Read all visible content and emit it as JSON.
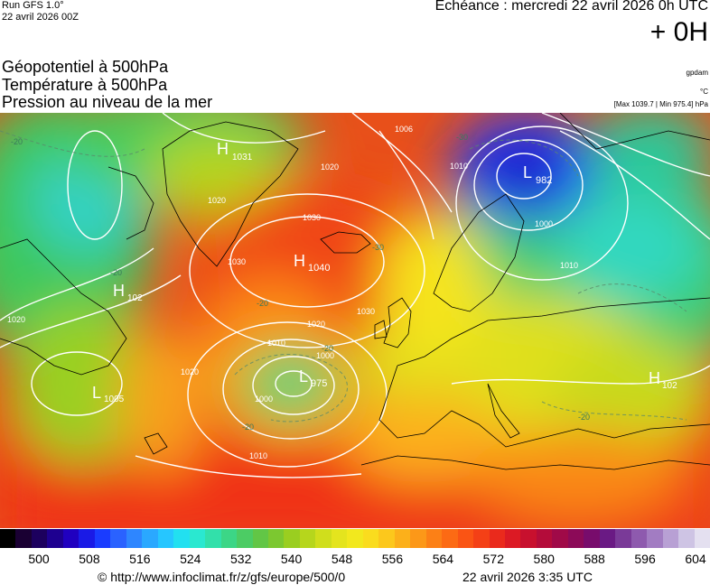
{
  "header": {
    "run": "Run GFS 1.0°",
    "run_date": "22 avril 2026 00Z",
    "echeance": "Echéance : mercredi 22 avril 2026 0h UTC",
    "lead": "+ 0H"
  },
  "titles": {
    "line1": "Géopotentiel à 500hPa",
    "line2": "Température à 500hPa",
    "line3": "Pression au niveau de la mer"
  },
  "units": {
    "geopotential": "gpdam",
    "temperature": "°C",
    "pressure_range": "[Max 1039.7 | Min 975.4] hPa"
  },
  "pressure_centers": [
    {
      "type": "H",
      "value": "1031"
    },
    {
      "type": "H",
      "value": "1040"
    },
    {
      "type": "H",
      "value": "102"
    },
    {
      "type": "L",
      "value": "982"
    },
    {
      "type": "L",
      "value": "975"
    },
    {
      "type": "L",
      "value": "1005"
    },
    {
      "type": "H",
      "value": "102"
    }
  ],
  "isobar_labels": [
    "1006",
    "1020",
    "1030",
    "1030",
    "1020",
    "1010",
    "1020",
    "1000",
    "1010",
    "1000",
    "1010",
    "1020",
    "1030",
    "1020",
    "1010",
    "1000"
  ],
  "isotherm_labels": [
    "-20",
    "-20",
    "-20",
    "-30",
    "-30",
    "-20",
    "-20",
    "-20"
  ],
  "scale": {
    "ticks": [
      "500",
      "508",
      "516",
      "524",
      "532",
      "540",
      "548",
      "556",
      "564",
      "572",
      "580",
      "588",
      "596",
      "604"
    ],
    "colors": [
      "#000000",
      "#1a0033",
      "#1c005e",
      "#1e0090",
      "#2000c0",
      "#1a1ae6",
      "#1a3cff",
      "#2a62ff",
      "#2e86ff",
      "#2aa8ff",
      "#26c6ff",
      "#22e0f0",
      "#2ae8d0",
      "#32e0aa",
      "#3cd686",
      "#4ccc64",
      "#62c646",
      "#7cc830",
      "#9ace20",
      "#b6d61c",
      "#d0de1c",
      "#e4e41e",
      "#f2e81e",
      "#fadc1e",
      "#fcc81c",
      "#fcb01a",
      "#fc9818",
      "#fc8016",
      "#fc6a14",
      "#fa5414",
      "#f44016",
      "#ea2a1c",
      "#dc1a24",
      "#c8102e",
      "#b40c3a",
      "#a00a48",
      "#8c0a58",
      "#780c6c",
      "#6a1a84",
      "#7a3a98",
      "#8e5aae",
      "#a27cc2",
      "#b8a0d4",
      "#cec4e4",
      "#e4e0f0"
    ]
  },
  "footer": {
    "copyright": "© http://www.infoclimat.fr/z/gfs/europe/500/0",
    "date": "22 avril 2026  3:35 UTC"
  }
}
